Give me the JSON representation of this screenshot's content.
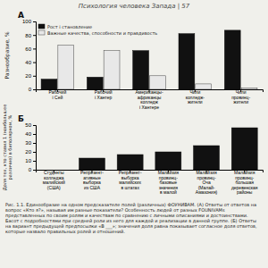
{
  "chart_data": [
    {
      "type": "bar",
      "title": "Психология человека Запада | 57",
      "subtitle": "А",
      "ylabel": "Разнообразие, %",
      "categories": [
        "Рабочий\nі Сей",
        "Рабочий\nі Хантер",
        "Американцы-\nафриканцы\nколледж\nі Хантере",
        "Чили\nколледж-\nжители",
        "Чили\nпровинц-\nжители"
      ],
      "series": [
        {
          "name": "Рост і становление",
          "color": "#111111",
          "values": [
            15,
            18,
            57,
            82,
            87
          ]
        },
        {
          "name": "Важные качества, способности и правдивость",
          "color": "#e8e8e8",
          "values": [
            65,
            57,
            20,
            8,
            2
          ]
        }
      ],
      "ylim": [
        0,
        100
      ],
      "yticks": [
        0,
        20,
        40,
        60,
        80,
        100
      ],
      "legend": "upper left",
      "grid": false
    },
    {
      "type": "bar",
      "subtitle": "Б",
      "ylabel": "Доля тех, кто ставил 1 (наибольшее\nразличие) в биполярном, %",
      "categories": [
        "Студенты\nколледжа\nмалийский\n(США)",
        "Репрезент-\nативные\nвыборка\nиз США",
        "Репрезент-\nвыборка\nмалийских\nв штатах",
        "Малайзия\nпровинц-\nбазовые\nзначения\nв малой",
        "Малайзия\nпровинц-\nОча\n(Малай-\nАмазония)",
        "Малайзия\nпровинц-\nбольшая\nдеревенская\nрайоны"
      ],
      "values": [
        0,
        13,
        17,
        20,
        27,
        47
      ],
      "color": "#111111",
      "ylim": [
        0,
        50
      ],
      "yticks": [
        0,
        10,
        20,
        30,
        40,
        50
      ],
      "grid": false,
      "annotations": [
        "Рис. 1.1. Единообразие на одном предсказателе полей (различных) ФОУНИВАМ. (А) Ответы от ответов на вопрос «Кто я?», называя им разные показатели? Особенность людей от разных FOUNIVAMs представленных по своим ролям и качествам по сравнению с личными описаниями и достоинствами. Басот с подробностями при средней роли из него для каждой и реализации в данной группе. (Б) Ответы на вариант предыдущей предпосылки «В ___»; значения доля равна показывает согласное доля ответов, которые назвало правильных ролей и отношений."
      ]
    }
  ]
}
